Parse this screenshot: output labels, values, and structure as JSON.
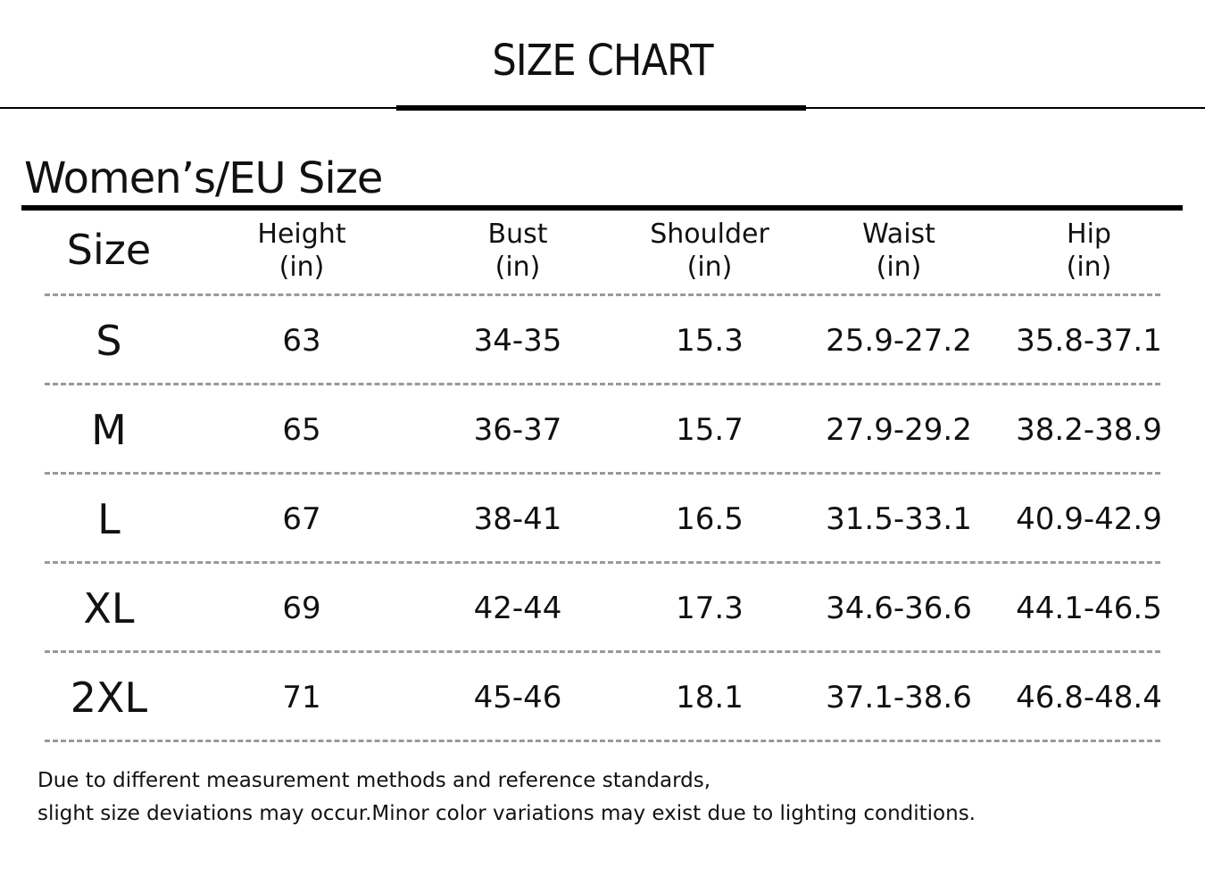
{
  "header": {
    "title": "SIZE CHART"
  },
  "section": {
    "title": "Women’s/EU Size"
  },
  "table": {
    "columns": [
      {
        "name": "Size"
      },
      {
        "name": "Height",
        "unit": "(in)"
      },
      {
        "name": "Bust",
        "unit": "(in)"
      },
      {
        "name": "Shoulder",
        "unit": "(in)"
      },
      {
        "name": "Waist",
        "unit": "(in)"
      },
      {
        "name": "Hip",
        "unit": "(in)"
      }
    ],
    "rows": [
      [
        "S",
        "63",
        "34-35",
        "15.3",
        "25.9-27.2",
        "35.8-37.1"
      ],
      [
        "M",
        "65",
        "36-37",
        "15.7",
        "27.9-29.2",
        "38.2-38.9"
      ],
      [
        "L",
        "67",
        "38-41",
        "16.5",
        "31.5-33.1",
        "40.9-42.9"
      ],
      [
        "XL",
        "69",
        "42-44",
        "17.3",
        "34.6-36.6",
        "44.1-46.5"
      ],
      [
        "2XL",
        "71",
        "45-46",
        "18.1",
        "37.1-38.6",
        "46.8-48.4"
      ]
    ]
  },
  "note": {
    "lines": [
      "Due to different measurement methods and reference standards,",
      "slight size deviations may occur.Minor color variations may exist due to lighting conditions."
    ]
  }
}
